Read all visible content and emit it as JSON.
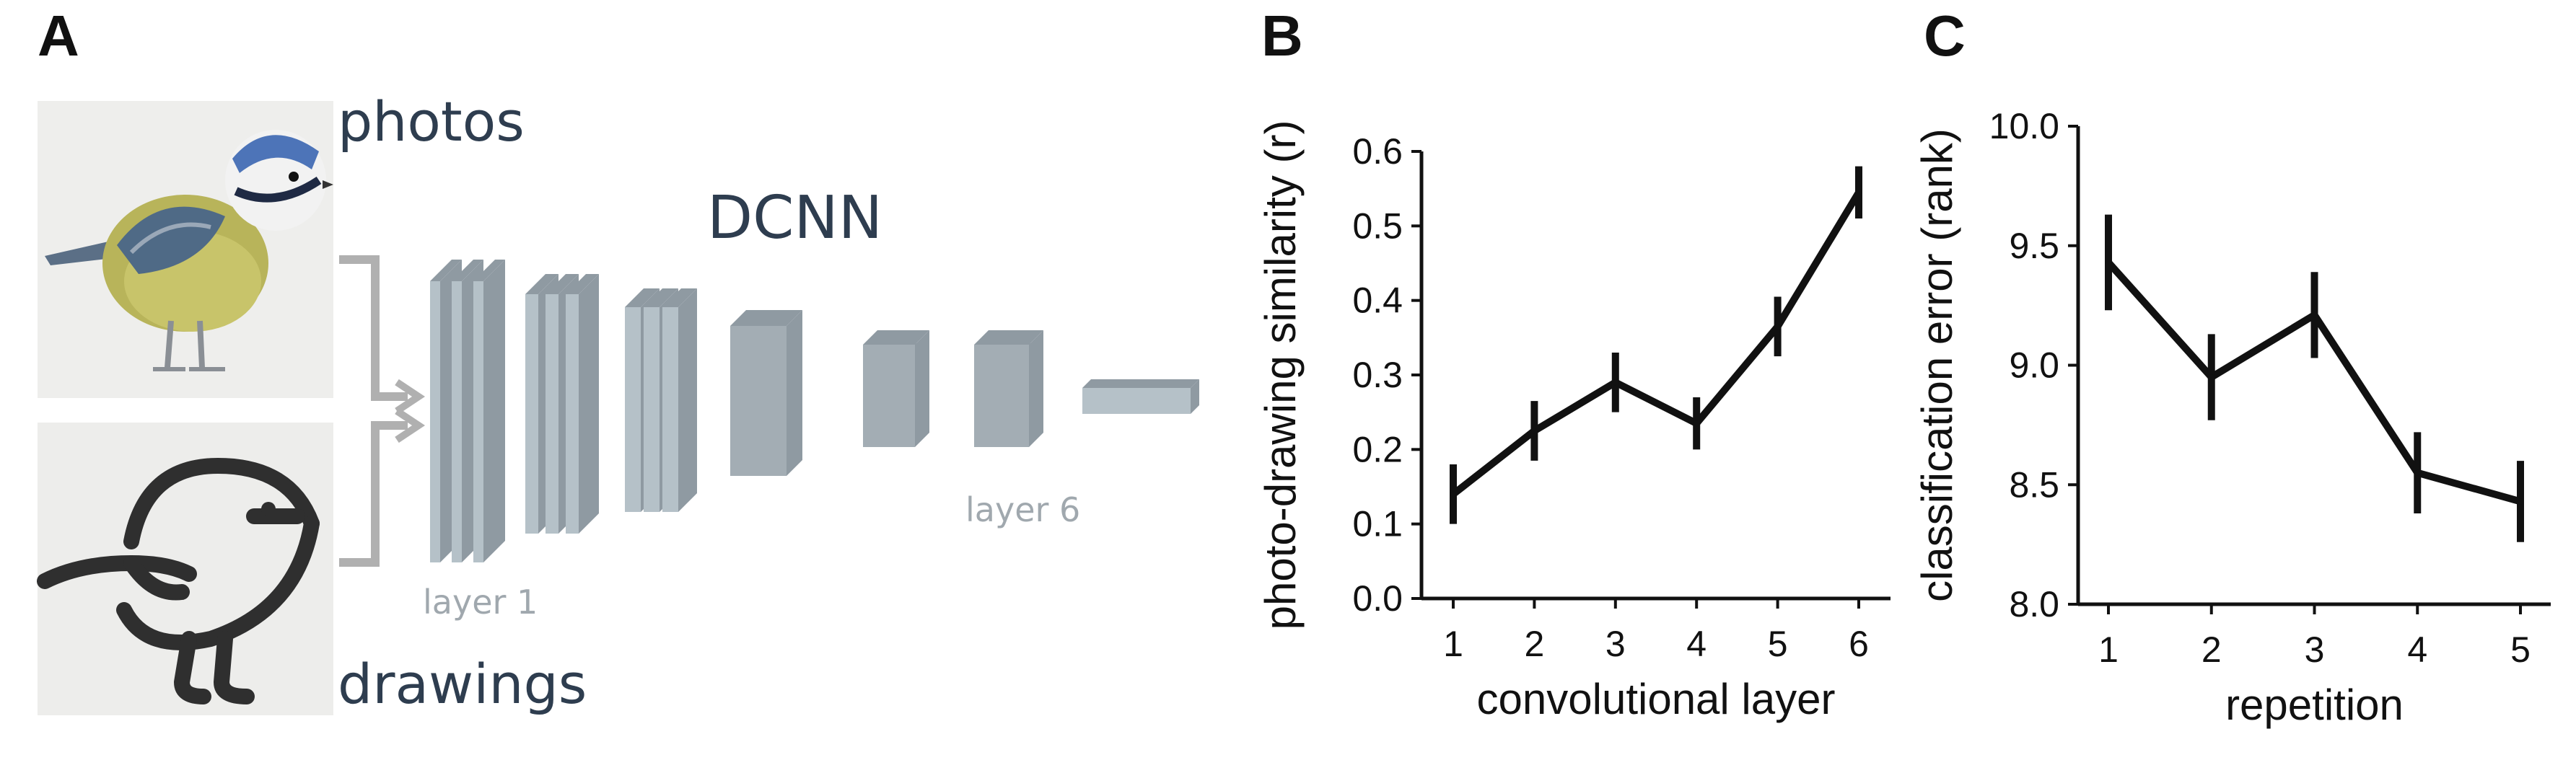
{
  "panels": {
    "a_letter": "A",
    "b_letter": "B",
    "c_letter": "C"
  },
  "panel_a": {
    "photos_label": "photos",
    "drawings_label": "drawings",
    "network_label": "DCNN",
    "layer1_label": "layer 1",
    "layer6_label": "layer 6",
    "colors": {
      "text_dark": "#2e3d4f",
      "layer_light": "#b5c1c8",
      "layer_dark": "#8f9aa2",
      "arrow": "#b0b0b0"
    }
  },
  "chart_data": [
    {
      "type": "line",
      "panel": "B",
      "x": [
        1,
        2,
        3,
        4,
        5,
        6
      ],
      "xticks": [
        "1",
        "2",
        "3",
        "4",
        "5",
        "6"
      ],
      "values": [
        0.14,
        0.225,
        0.29,
        0.235,
        0.365,
        0.545
      ],
      "errors": [
        0.04,
        0.04,
        0.04,
        0.035,
        0.04,
        0.035
      ],
      "ylim": [
        0.0,
        0.6
      ],
      "yticks": [
        "0.0",
        "0.1",
        "0.2",
        "0.3",
        "0.4",
        "0.5",
        "0.6"
      ],
      "xlabel": "convolutional layer",
      "ylabel": "photo-drawing similarity (r)",
      "grid": false,
      "color": "#111111"
    },
    {
      "type": "line",
      "panel": "C",
      "x": [
        1,
        2,
        3,
        4,
        5
      ],
      "xticks": [
        "1",
        "2",
        "3",
        "4",
        "5"
      ],
      "values": [
        9.43,
        8.95,
        9.21,
        8.55,
        8.43
      ],
      "errors": [
        0.2,
        0.18,
        0.18,
        0.17,
        0.17
      ],
      "ylim": [
        8.0,
        10.0
      ],
      "yticks": [
        "8.0",
        "8.5",
        "9.0",
        "9.5",
        "10.0"
      ],
      "xlabel": "repetition",
      "ylabel": "classification error (rank)",
      "grid": false,
      "color": "#111111"
    }
  ]
}
